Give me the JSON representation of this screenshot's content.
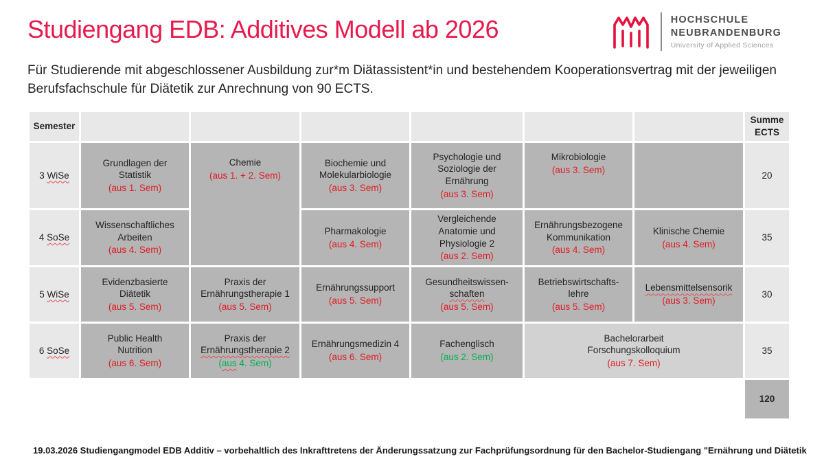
{
  "slide": {
    "title": "Studiengang EDB: Additives Modell ab 2026",
    "intro": "Für Studierende mit abgeschlossener Ausbildung zur*m Diätassistent*in und bestehendem Kooperationsvertrag mit der jeweiligen Berufsfachschule für Diätetik zur Anrechnung von 90 ECTS.",
    "footer": "19.03.2026   Studiengangmodel  EDB Additiv – vorbehaltlich des Inkrafttretens der Änderungssatzung zur Fachprüfungsordnung für den Bachelor-Studiengang \"Ernährung und Diätetik"
  },
  "logo": {
    "icon": "neubrandenburg-gate-icon",
    "line1": "HOCHSCHULE",
    "line2": "NEUBRANDENBURG",
    "subtitle": "University of Applied Sciences"
  },
  "colors": {
    "brand_red": "#e61a4d",
    "note_red": "#e01b24",
    "note_green": "#00b050",
    "cell_gray": "#b5b5b5",
    "cell_light_gray": "#d2d2d2",
    "band_gray": "#e8e8e8"
  },
  "table": {
    "header": {
      "semester": "Semester",
      "summe": "Summe ECTS"
    },
    "total": "120",
    "rows": [
      {
        "semester": [
          {
            "t": "3 "
          },
          {
            "t": "WiSe",
            "wavy": true
          }
        ],
        "summe": "20",
        "cells": [
          {
            "lines": [
              {
                "t": "Grundlagen der"
              },
              {
                "t": "Statistik"
              }
            ],
            "note": {
              "color": "red",
              "runs": [
                {
                  "t": "(aus 1. Sem)"
                }
              ]
            }
          },
          {
            "rowspan": 2,
            "valign": "top",
            "lines": [
              {
                "t": "Chemie"
              }
            ],
            "note": {
              "color": "red",
              "runs": [
                {
                  "t": "(aus 1. + 2. Sem)"
                }
              ]
            }
          },
          {
            "lines": [
              {
                "t": "Biochemie und"
              },
              {
                "t": "Molekularbiologie"
              }
            ],
            "note": {
              "color": "red",
              "runs": [
                {
                  "t": "(aus 3. Sem)"
                }
              ]
            }
          },
          {
            "lines": [
              {
                "t": "Psychologie und"
              },
              {
                "t": "Soziologie der"
              },
              {
                "t": "Ernährung"
              }
            ],
            "note": {
              "color": "red",
              "runs": [
                {
                  "t": "(aus 3. Sem)"
                }
              ]
            }
          },
          {
            "valign": "top",
            "lines": [
              {
                "t": "Mikrobiologie"
              }
            ],
            "note": {
              "color": "red",
              "runs": [
                {
                  "t": "(aus 3. Sem)"
                }
              ]
            }
          },
          {
            "lines": []
          }
        ]
      },
      {
        "semester": [
          {
            "t": "4 "
          },
          {
            "t": "SoSe",
            "wavy": true
          }
        ],
        "summe": "35",
        "cells": [
          {
            "lines": [
              {
                "t": "Wissenschaftliches"
              },
              {
                "t": "Arbeiten"
              }
            ],
            "note": {
              "color": "red",
              "runs": [
                {
                  "t": "(aus 4. Sem)"
                }
              ]
            }
          },
          {
            "lines": [
              {
                "t": "Pharmakologie"
              }
            ],
            "note": {
              "color": "red",
              "runs": [
                {
                  "t": "(aus 4. Sem)"
                }
              ]
            }
          },
          {
            "lines": [
              {
                "t": "Vergleichende"
              },
              {
                "t": "Anatomie und"
              },
              {
                "t": "Physiologie 2"
              }
            ],
            "note": {
              "color": "red",
              "runs": [
                {
                  "t": "(aus 2. Sem)"
                }
              ]
            }
          },
          {
            "lines": [
              {
                "t": "Ernährungsbezogene"
              },
              {
                "t": "Kommunikation"
              }
            ],
            "note": {
              "color": "red",
              "runs": [
                {
                  "t": "(aus 4. Sem)"
                }
              ]
            }
          },
          {
            "lines": [
              {
                "t": "Klinische Chemie"
              }
            ],
            "note": {
              "color": "red",
              "runs": [
                {
                  "t": "(aus 4. Sem)"
                }
              ]
            }
          }
        ]
      },
      {
        "semester": [
          {
            "t": "5 "
          },
          {
            "t": "WiSe",
            "wavy": true
          }
        ],
        "summe": "30",
        "cells": [
          {
            "lines": [
              {
                "t": "Evidenzbasierte"
              },
              {
                "t": "Diätetik"
              }
            ],
            "note": {
              "color": "red",
              "runs": [
                {
                  "t": "(aus 5. Sem)"
                }
              ]
            }
          },
          {
            "lines": [
              {
                "t": "Praxis der"
              },
              {
                "t": "Ernährungstherapie 1"
              }
            ],
            "note": {
              "color": "red",
              "runs": [
                {
                  "t": "(aus 5. Sem)"
                }
              ]
            }
          },
          {
            "lines": [
              {
                "t": "Ernährungssupport"
              }
            ],
            "note": {
              "color": "red",
              "runs": [
                {
                  "t": "(aus 5. Sem)"
                }
              ]
            }
          },
          {
            "lines": [
              {
                "t": "Gesundheitswissen-"
              },
              {
                "t": "schaften",
                "wavy": true
              }
            ],
            "note": {
              "color": "red",
              "runs": [
                {
                  "t": "(aus 5. Sem)"
                }
              ]
            }
          },
          {
            "lines": [
              {
                "t": "Betriebswirtschafts-"
              },
              {
                "t": "lehre"
              }
            ],
            "note": {
              "color": "red",
              "runs": [
                {
                  "t": "(aus 5. Sem)"
                }
              ]
            }
          },
          {
            "lines": [
              {
                "t": "Lebensmittelsensorik",
                "wavy": true
              }
            ],
            "note": {
              "color": "red",
              "runs": [
                {
                  "t": "(aus 3. Sem)"
                }
              ]
            }
          }
        ]
      },
      {
        "semester": [
          {
            "t": "6 "
          },
          {
            "t": "SoSe",
            "wavy": true
          }
        ],
        "summe": "35",
        "cells": [
          {
            "lines": [
              {
                "t": "Public Health"
              },
              {
                "t": "Nutrition"
              }
            ],
            "note": {
              "color": "red",
              "runs": [
                {
                  "t": "(aus 6. Sem)"
                }
              ]
            }
          },
          {
            "lines": [
              {
                "t": "Praxis der"
              },
              {
                "t": "Ernährungstherapie 2",
                "wavy": true
              }
            ],
            "note": {
              "color": "green",
              "runs": [
                {
                  "t": "("
                },
                {
                  "t": "aus",
                  "wavy": true
                },
                {
                  "t": " 4. Sem)"
                }
              ]
            }
          },
          {
            "lines": [
              {
                "t": "Ernährungsmedizin 4"
              }
            ],
            "note": {
              "color": "red",
              "runs": [
                {
                  "t": "(aus 6. Sem)"
                }
              ]
            }
          },
          {
            "lines": [
              {
                "t": "Fachenglisch"
              }
            ],
            "note": {
              "color": "green",
              "runs": [
                {
                  "t": "(aus 2. Sem)"
                }
              ]
            }
          },
          {
            "colspan": 2,
            "light": true,
            "lines": [
              {
                "t": "Bachelorarbeit"
              },
              {
                "t": "Forschungskolloquium"
              }
            ],
            "note": {
              "color": "red",
              "runs": [
                {
                  "t": "(aus 7. Sem)"
                }
              ]
            }
          }
        ]
      }
    ]
  }
}
